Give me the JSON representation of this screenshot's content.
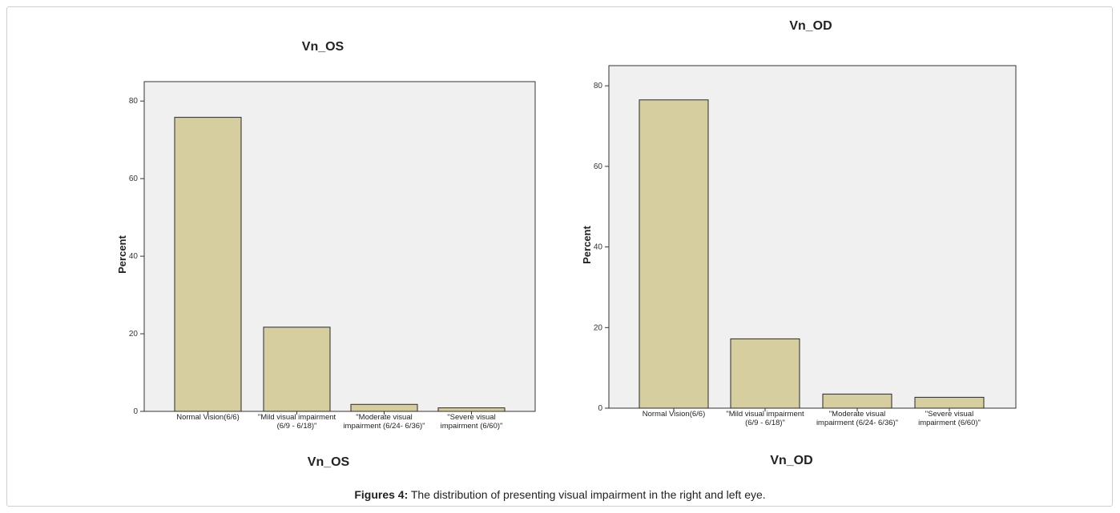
{
  "figure": {
    "caption_label": "Figures 4:",
    "caption_text": " The distribution of presenting visual impairment in the right and left eye."
  },
  "colors": {
    "bar_fill": "#d6ce9e",
    "bar_stroke": "#2a2a2a",
    "plot_bg": "#f0f0f0",
    "axis": "#333333"
  },
  "chart_data": [
    {
      "type": "bar",
      "title": "Vn_OS",
      "xlabel": "Vn_OS",
      "ylabel": "Percent",
      "ylim": [
        0,
        85
      ],
      "yticks": [
        0,
        20,
        40,
        60,
        80
      ],
      "grid": false,
      "categories": [
        [
          "Normal Vision(6/6)"
        ],
        [
          "\"Mild visual impairment",
          "(6/9 - 6/18)\""
        ],
        [
          "\"Moderate visual",
          "impairment (6/24- 6/36)\""
        ],
        [
          "\"Severe visual",
          "impairment (6/60)\""
        ]
      ],
      "values": [
        75.8,
        21.7,
        1.8,
        0.9
      ]
    },
    {
      "type": "bar",
      "title": "Vn_OD",
      "xlabel": "Vn_OD",
      "ylabel": "Percent",
      "ylim": [
        0,
        85
      ],
      "yticks": [
        0,
        20,
        40,
        60,
        80
      ],
      "grid": false,
      "categories": [
        [
          "Normal Vision(6/6)"
        ],
        [
          "\"Mild visual impairment",
          "(6/9 - 6/18)\""
        ],
        [
          "\"Moderate visual",
          "impairment (6/24- 6/36)\""
        ],
        [
          "\"Severe visual",
          "impairment (6/60)\""
        ]
      ],
      "values": [
        76.5,
        17.2,
        3.5,
        2.7
      ]
    }
  ]
}
